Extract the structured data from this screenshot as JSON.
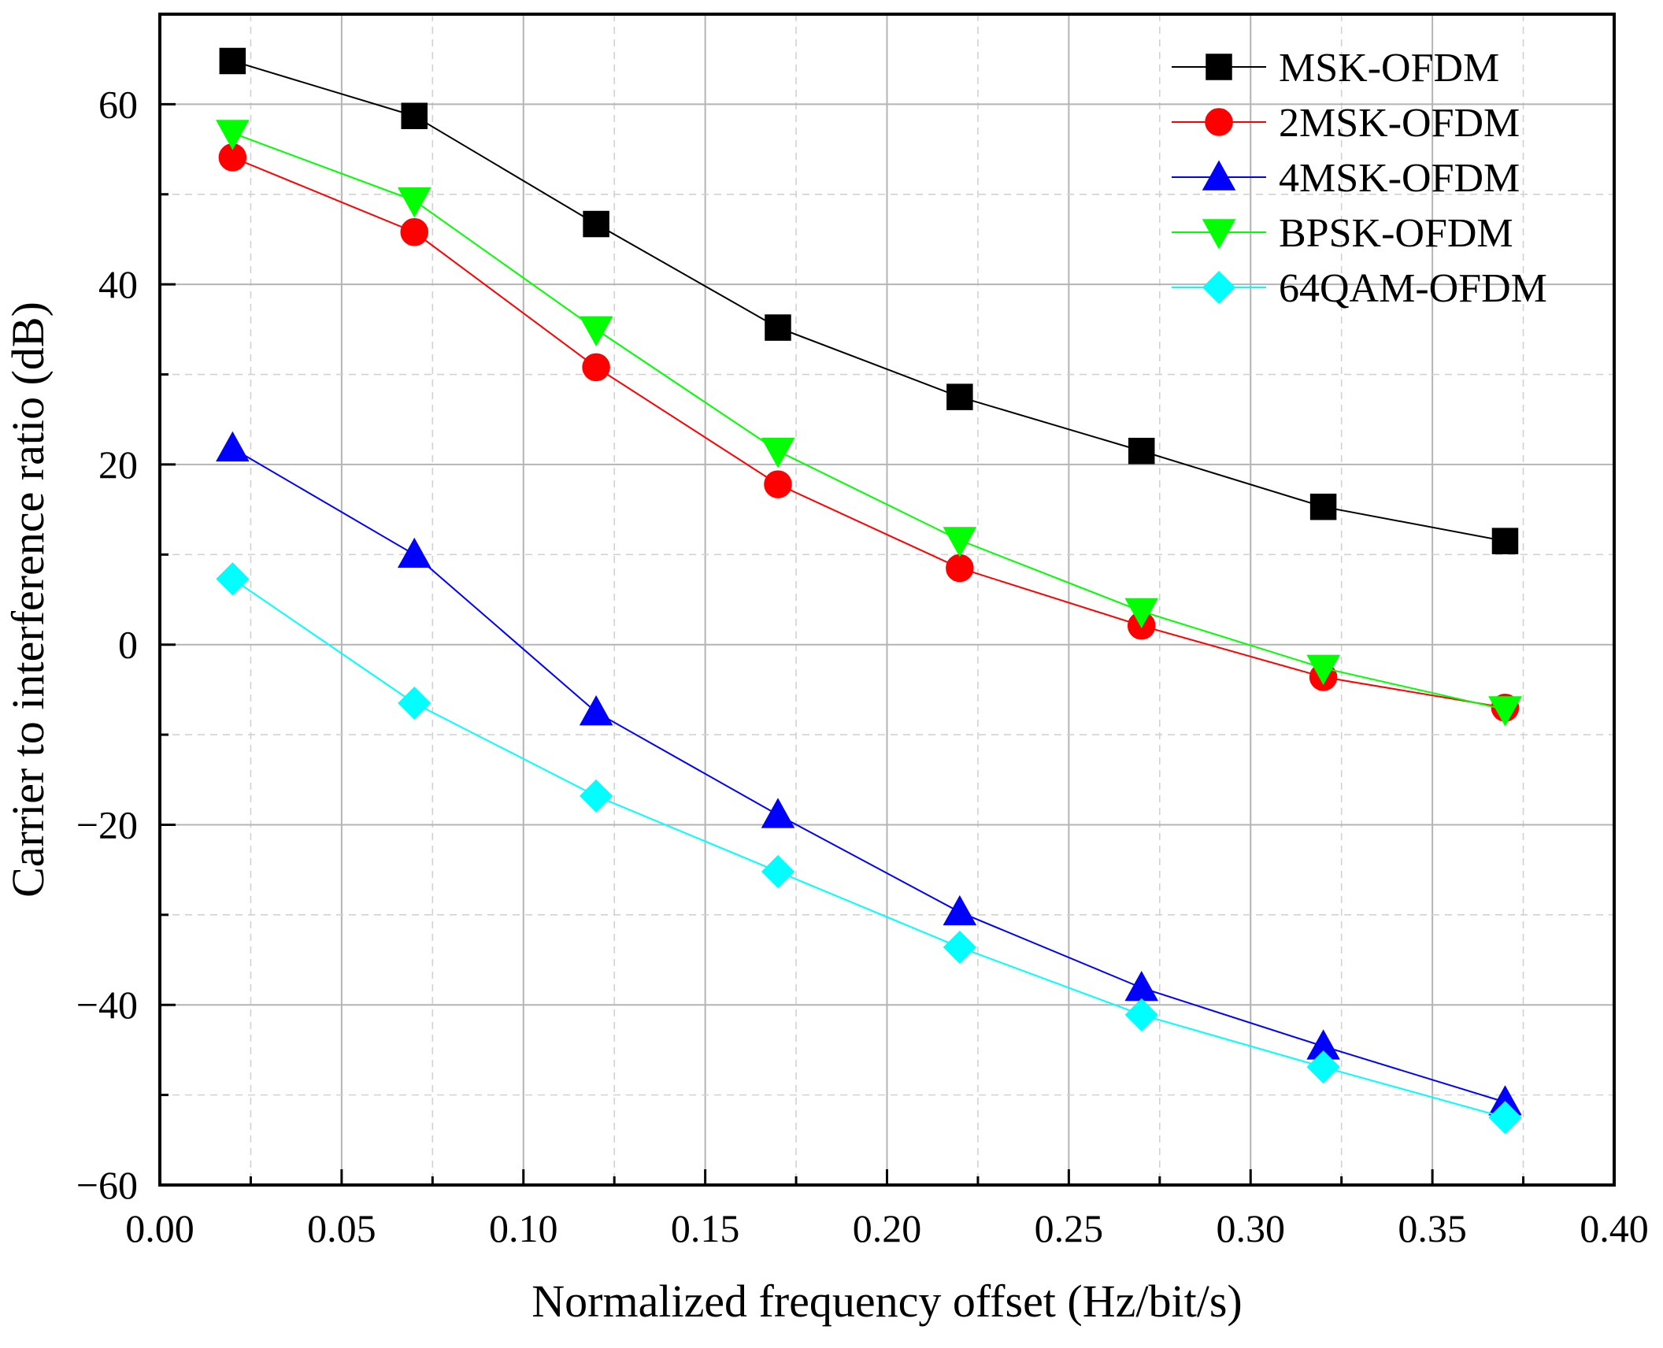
{
  "chart_data": {
    "type": "line",
    "title": "",
    "xlabel": "Normalized frequency offset (Hz/bit/s)",
    "ylabel": "Carrier to interference ratio (dB)",
    "xlim": [
      0.0,
      0.4
    ],
    "ylim": [
      -60,
      70
    ],
    "x_ticks": [
      0.0,
      0.05,
      0.1,
      0.15,
      0.2,
      0.25,
      0.3,
      0.35,
      0.4
    ],
    "x_tick_labels": [
      "0.00",
      "0.05",
      "0.10",
      "0.15",
      "0.20",
      "0.25",
      "0.30",
      "0.35",
      "0.40"
    ],
    "y_ticks": [
      -60,
      -40,
      -20,
      0,
      20,
      40,
      60
    ],
    "y_tick_labels": [
      "−60",
      "−40",
      "−20",
      "0",
      "20",
      "40",
      "60"
    ],
    "y_minor_ticks": [
      -50,
      -30,
      -10,
      10,
      30,
      50,
      70
    ],
    "grid": true,
    "legend_position": "top-right",
    "x": [
      0.02,
      0.07,
      0.12,
      0.17,
      0.22,
      0.27,
      0.32,
      0.37
    ],
    "series": [
      {
        "name": "MSK-OFDM",
        "color": "#000000",
        "marker": "square",
        "values": [
          64.8,
          58.7,
          46.7,
          35.2,
          27.5,
          21.5,
          15.3,
          11.5
        ]
      },
      {
        "name": "2MSK-OFDM",
        "color": "#ff0000",
        "marker": "circle",
        "values": [
          54.1,
          45.8,
          30.8,
          17.8,
          8.5,
          2.1,
          -3.6,
          -7.0
        ]
      },
      {
        "name": "4MSK-OFDM",
        "color": "#0000ff",
        "marker": "triangle-up",
        "values": [
          21.8,
          10.0,
          -7.5,
          -18.9,
          -29.7,
          -38.1,
          -44.6,
          -50.8
        ]
      },
      {
        "name": "BPSK-OFDM",
        "color": "#00ff00",
        "marker": "triangle-down",
        "values": [
          56.8,
          49.3,
          35.0,
          21.5,
          11.6,
          3.7,
          -2.6,
          -7.2
        ]
      },
      {
        "name": "64QAM-OFDM",
        "color": "#00ffff",
        "marker": "diamond",
        "values": [
          7.3,
          -6.5,
          -16.8,
          -25.2,
          -33.6,
          -41.1,
          -46.9,
          -52.5
        ]
      }
    ]
  }
}
